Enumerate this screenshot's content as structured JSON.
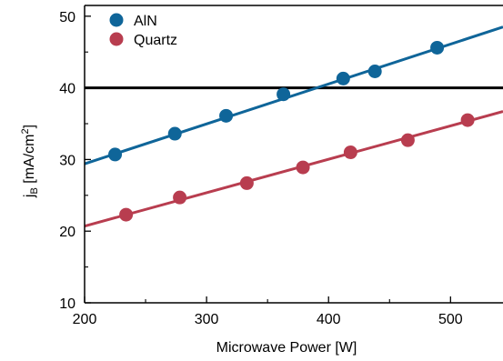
{
  "chart_data": {
    "type": "scatter",
    "title": "",
    "xlabel": "Microwave Power [W]",
    "ylabel": {
      "main": "j",
      "sub": "B",
      "unit_prefix": " [mA/cm",
      "unit_sup": "2",
      "unit_suffix": "]"
    },
    "xlim": [
      200,
      543
    ],
    "ylim": [
      10,
      51.5
    ],
    "xticks": [
      200,
      300,
      400,
      500
    ],
    "yticks": [
      10,
      20,
      30,
      40,
      50
    ],
    "grid": false,
    "legend_position": "top-left",
    "reference_line": {
      "y": 40,
      "color": "#000000"
    },
    "series": [
      {
        "name": "AlN",
        "color": "#0F6599",
        "points": [
          {
            "x": 225,
            "y": 30.7
          },
          {
            "x": 274,
            "y": 33.6
          },
          {
            "x": 316,
            "y": 36.1
          },
          {
            "x": 363,
            "y": 39.1
          },
          {
            "x": 412,
            "y": 41.3
          },
          {
            "x": 438,
            "y": 42.3
          },
          {
            "x": 489,
            "y": 45.6
          }
        ],
        "fit": {
          "x0": 200,
          "y0": 29.4,
          "x1": 543,
          "y1": 48.5
        }
      },
      {
        "name": "Quartz",
        "color": "#B83D4F",
        "points": [
          {
            "x": 234,
            "y": 22.3
          },
          {
            "x": 278,
            "y": 24.7
          },
          {
            "x": 333,
            "y": 26.7
          },
          {
            "x": 379,
            "y": 28.9
          },
          {
            "x": 418,
            "y": 31.0
          },
          {
            "x": 465,
            "y": 32.7
          },
          {
            "x": 514,
            "y": 35.5
          }
        ],
        "fit": {
          "x0": 200,
          "y0": 20.7,
          "x1": 543,
          "y1": 36.7
        }
      }
    ]
  }
}
